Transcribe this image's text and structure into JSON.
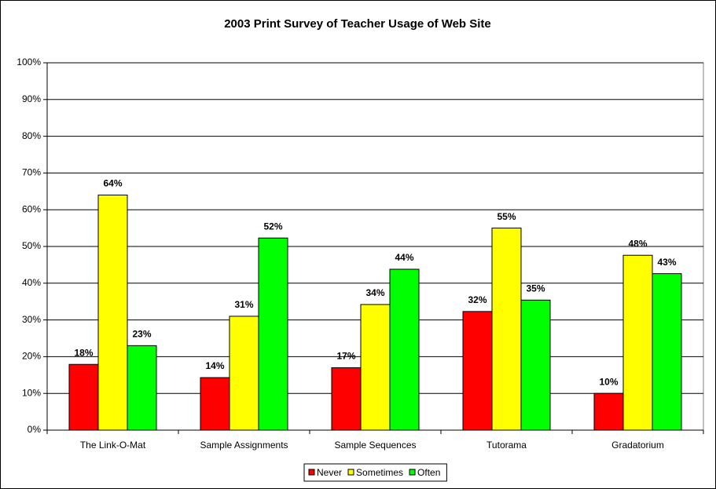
{
  "chart_data": {
    "type": "bar",
    "title": "2003 Print Survey of Teacher Usage of Web Site",
    "categories": [
      "The Link-O-Mat",
      "Sample Assignments",
      "Sample Sequences",
      "Tutorama",
      "Gradatorium"
    ],
    "series": [
      {
        "name": "Never",
        "color": "#ff0000",
        "values": [
          17.9,
          14.3,
          17,
          32.3,
          10
        ],
        "value_labels": [
          "18%",
          "14%",
          "17%",
          "32%",
          "10%"
        ]
      },
      {
        "name": "Sometimes",
        "color": "#ffff00",
        "values": [
          64,
          31,
          34.2,
          55,
          47.6
        ],
        "value_labels": [
          "64%",
          "31%",
          "34%",
          "55%",
          "48%"
        ]
      },
      {
        "name": "Often",
        "color": "#00ff00",
        "values": [
          23,
          52.3,
          43.8,
          35.4,
          42.6
        ],
        "value_labels": [
          "23%",
          "52%",
          "44%",
          "35%",
          "43%"
        ]
      }
    ],
    "ylim": [
      0,
      100
    ],
    "yticks": [
      {
        "value": 0,
        "label": "0%"
      },
      {
        "value": 10,
        "label": "10%"
      },
      {
        "value": 20,
        "label": "20%"
      },
      {
        "value": 30,
        "label": "30%"
      },
      {
        "value": 40,
        "label": "40%"
      },
      {
        "value": 50,
        "label": "50%"
      },
      {
        "value": 60,
        "label": "60%"
      },
      {
        "value": 70,
        "label": "70%"
      },
      {
        "value": 80,
        "label": "80%"
      },
      {
        "value": 90,
        "label": "90%"
      },
      {
        "value": 100,
        "label": "100%"
      }
    ],
    "grid": true,
    "legend": "bottom"
  }
}
